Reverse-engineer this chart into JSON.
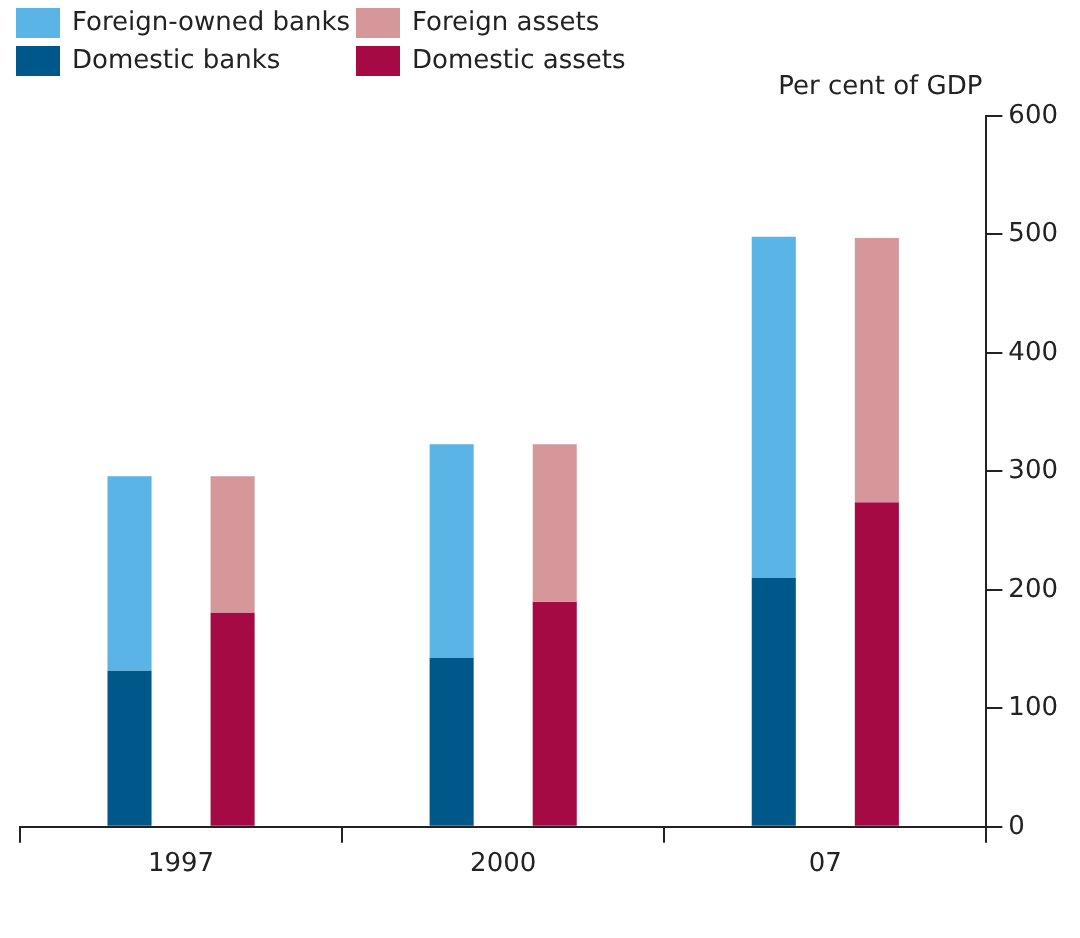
{
  "chart_data": {
    "type": "bar",
    "stacked": true,
    "ylabel": "Per cent of GDP",
    "categories": [
      null,
      null,
      null,
      null,
      null,
      null
    ],
    "series": [
      {
        "name": "Domestic banks",
        "color": "#00578a",
        "values": [
          132,
          null,
          143,
          null,
          210,
          null
        ]
      },
      {
        "name": "Foreign-owned banks",
        "color": "#5ab4e5",
        "values": [
          164,
          null,
          180,
          null,
          288,
          null
        ]
      },
      {
        "name": "Domestic assets",
        "color": "#a50a45",
        "values": [
          null,
          181,
          null,
          190,
          null,
          274
        ]
      },
      {
        "name": "Foreign assets",
        "color": "#d6979b",
        "values": [
          null,
          115,
          null,
          133,
          null,
          223
        ]
      }
    ],
    "annotations": [
      "1997",
      "2000",
      "07"
    ],
    "ylim": [
      0,
      600
    ],
    "yticks": [
      0,
      100,
      200,
      300,
      400,
      500,
      600
    ],
    "grid": false,
    "legend": "top left"
  }
}
